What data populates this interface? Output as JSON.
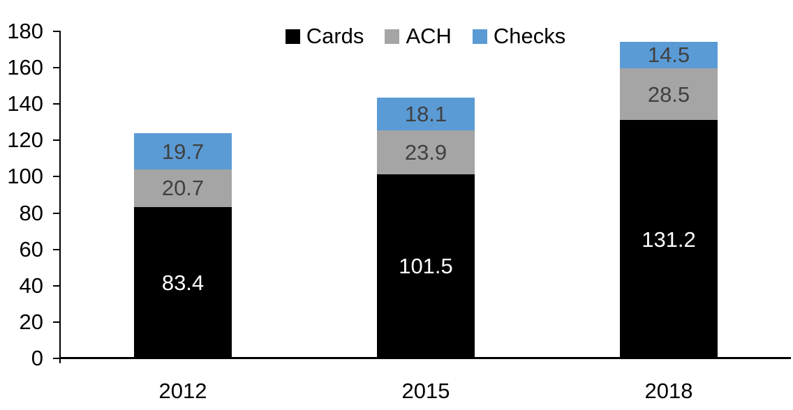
{
  "chart_data": {
    "type": "bar",
    "stacked": true,
    "categories": [
      "2012",
      "2015",
      "2018"
    ],
    "series": [
      {
        "name": "Cards",
        "color": "#000000",
        "label_color": "#ffffff",
        "values": [
          83.4,
          101.5,
          131.2
        ]
      },
      {
        "name": "ACH",
        "color": "#a5a5a5",
        "label_color": "#404040",
        "values": [
          20.7,
          23.9,
          28.5
        ]
      },
      {
        "name": "Checks",
        "color": "#5b9bd5",
        "label_color": "#404040",
        "values": [
          19.7,
          18.1,
          14.5
        ]
      }
    ],
    "ylim": [
      0,
      180
    ],
    "yticks": [
      0,
      20,
      40,
      60,
      80,
      100,
      120,
      140,
      160,
      180
    ],
    "legend_position": "top-center",
    "grid": false,
    "axis_color": "#000000",
    "background": "#ffffff"
  }
}
